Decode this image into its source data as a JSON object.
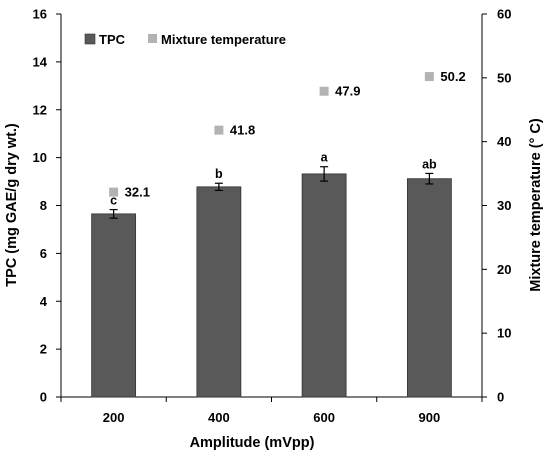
{
  "chart_data": {
    "type": "bar",
    "xlabel": "Amplitude (mVpp)",
    "ylabel": "TPC (mg GAE/g dry wt.)",
    "y2label": "Mixture temperature (° C)",
    "categories": [
      "200",
      "400",
      "600",
      "900"
    ],
    "ylim": [
      0,
      16
    ],
    "yticks": [
      0,
      2,
      4,
      6,
      8,
      10,
      12,
      14,
      16
    ],
    "y2lim": [
      0,
      60
    ],
    "y2ticks": [
      0,
      10,
      20,
      30,
      40,
      50,
      60
    ],
    "grid": false,
    "legend_position": "top-left",
    "series": [
      {
        "name": "TPC",
        "type": "bar",
        "axis": "left",
        "color": "#595959",
        "values": [
          7.65,
          8.78,
          9.32,
          9.12
        ],
        "errors": [
          0.18,
          0.15,
          0.3,
          0.22
        ],
        "significance_labels": [
          "c",
          "b",
          "a",
          "ab"
        ]
      },
      {
        "name": "Mixture temperature",
        "type": "scatter",
        "axis": "right",
        "color": "#b3b3b3",
        "marker": "square",
        "values": [
          32.1,
          41.8,
          47.9,
          50.2
        ],
        "data_labels": [
          "32.1",
          "41.8",
          "47.9",
          "50.2"
        ]
      }
    ]
  }
}
